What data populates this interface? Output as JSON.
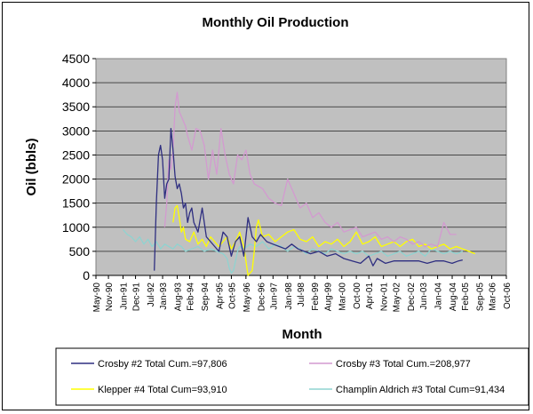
{
  "chart_data": {
    "type": "line",
    "title": "Monthly Oil Production",
    "xlabel": "Month",
    "ylabel": "Oil (bbls)",
    "ylim": [
      0,
      4500
    ],
    "yticks": [
      0,
      500,
      1000,
      1500,
      2000,
      2500,
      3000,
      3500,
      4000,
      4500
    ],
    "xlim": [
      "1990-05",
      "2006-10"
    ],
    "xticks": [
      "May-90",
      "Nov-90",
      "Jun-91",
      "Dec-91",
      "Jul-92",
      "Jan-93",
      "Aug-93",
      "Feb-94",
      "Sep-94",
      "Apr-95",
      "Oct-95",
      "May-96",
      "Dec-96",
      "Jun-97",
      "Jan-98",
      "Jul-98",
      "Feb-99",
      "Aug-99",
      "Mar-00",
      "Oct-00",
      "Apr-01",
      "Nov-01",
      "May-02",
      "Dec-02",
      "Jun-03",
      "Jan-04",
      "Aug-04",
      "Feb-05",
      "Sep-05",
      "Mar-06",
      "Oct-06"
    ],
    "grid": true,
    "legend_position": "bottom",
    "plot_background": "#c0c0c0",
    "series": [
      {
        "name": "Crosby #2 Total Cum.=97,806",
        "color": "#2e2e80",
        "x": [
          "1992-09",
          "1992-10",
          "1992-11",
          "1992-12",
          "1993-01",
          "1993-02",
          "1993-03",
          "1993-04",
          "1993-05",
          "1993-06",
          "1993-07",
          "1993-08",
          "1993-09",
          "1993-10",
          "1993-11",
          "1993-12",
          "1994-01",
          "1994-02",
          "1994-03",
          "1994-04",
          "1994-05",
          "1994-06",
          "1994-08",
          "1994-10",
          "1994-12",
          "1995-02",
          "1995-04",
          "1995-06",
          "1995-08",
          "1995-10",
          "1995-12",
          "1996-02",
          "1996-04",
          "1996-06",
          "1996-08",
          "1996-10",
          "1996-12",
          "1997-03",
          "1997-06",
          "1997-09",
          "1997-12",
          "1998-03",
          "1998-06",
          "1998-09",
          "1998-12",
          "1999-04",
          "1999-08",
          "1999-12",
          "2000-04",
          "2000-08",
          "2000-12",
          "2001-04",
          "2001-06",
          "2001-08",
          "2001-12",
          "2002-04",
          "2002-08",
          "2002-12",
          "2003-04",
          "2003-08",
          "2003-12",
          "2004-04",
          "2004-08",
          "2004-11",
          "2005-01"
        ],
        "y": [
          100,
          1500,
          2500,
          2700,
          2400,
          1600,
          1900,
          2000,
          3050,
          2600,
          2050,
          1800,
          1900,
          1700,
          1400,
          1500,
          1100,
          1300,
          1400,
          1100,
          1000,
          900,
          1400,
          800,
          700,
          600,
          500,
          900,
          800,
          400,
          700,
          800,
          400,
          1200,
          800,
          700,
          850,
          700,
          650,
          600,
          550,
          650,
          550,
          500,
          450,
          500,
          400,
          450,
          350,
          300,
          250,
          400,
          200,
          350,
          250,
          300,
          300,
          300,
          300,
          250,
          300,
          300,
          250,
          300,
          320
        ]
      },
      {
        "name": "Crosby #3 Total Cum.=208,977",
        "color": "#d39ad0",
        "x": [
          "1993-02",
          "1993-03",
          "1993-04",
          "1993-05",
          "1993-06",
          "1993-07",
          "1993-08",
          "1993-09",
          "1993-10",
          "1993-11",
          "1993-12",
          "1994-01",
          "1994-03",
          "1994-05",
          "1994-07",
          "1994-09",
          "1994-11",
          "1995-01",
          "1995-03",
          "1995-05",
          "1995-07",
          "1995-09",
          "1995-11",
          "1996-01",
          "1996-03",
          "1996-05",
          "1996-07",
          "1996-09",
          "1996-11",
          "1997-01",
          "1997-04",
          "1997-07",
          "1997-10",
          "1998-01",
          "1998-04",
          "1998-07",
          "1998-10",
          "1999-01",
          "1999-04",
          "1999-07",
          "1999-10",
          "2000-01",
          "2000-04",
          "2000-07",
          "2000-10",
          "2001-01",
          "2001-04",
          "2001-07",
          "2001-10",
          "2002-01",
          "2002-04",
          "2002-07",
          "2002-10",
          "2003-01",
          "2003-04",
          "2003-07",
          "2003-10",
          "2004-01",
          "2004-04",
          "2004-07",
          "2004-10"
        ],
        "y": [
          1000,
          1500,
          2400,
          2200,
          2600,
          3500,
          3800,
          3400,
          3300,
          3200,
          3100,
          2900,
          2600,
          3050,
          3000,
          2700,
          2000,
          2600,
          2100,
          3050,
          2500,
          2100,
          1900,
          2500,
          2400,
          2600,
          2100,
          1900,
          1850,
          1800,
          1600,
          1500,
          1450,
          2000,
          1700,
          1400,
          1500,
          1200,
          1300,
          1100,
          1000,
          1100,
          900,
          950,
          1000,
          800,
          850,
          900,
          750,
          800,
          700,
          800,
          750,
          650,
          700,
          600,
          650,
          600,
          1100,
          850,
          850
        ]
      },
      {
        "name": "Klepper #4 Total Cum=93,910",
        "color": "#ffff00",
        "x": [
          "1993-06",
          "1993-07",
          "1993-08",
          "1993-09",
          "1993-10",
          "1993-11",
          "1993-12",
          "1994-02",
          "1994-04",
          "1994-06",
          "1994-08",
          "1994-10",
          "1994-12",
          "1995-02",
          "1995-04",
          "1995-06",
          "1995-08",
          "1995-10",
          "1995-12",
          "1996-02",
          "1996-04",
          "1996-06",
          "1996-08",
          "1996-09",
          "1996-10",
          "1996-11",
          "1997-01",
          "1997-04",
          "1997-07",
          "1997-10",
          "1998-01",
          "1998-04",
          "1998-07",
          "1998-10",
          "1999-01",
          "1999-04",
          "1999-07",
          "1999-10",
          "2000-01",
          "2000-04",
          "2000-07",
          "2000-10",
          "2001-01",
          "2001-04",
          "2001-07",
          "2001-10",
          "2002-01",
          "2002-04",
          "2002-07",
          "2002-10",
          "2003-01",
          "2003-04",
          "2003-07",
          "2003-10",
          "2004-01",
          "2004-04",
          "2004-07",
          "2004-10",
          "2005-01",
          "2005-04",
          "2005-07"
        ],
        "y": [
          1100,
          1400,
          1450,
          1200,
          900,
          1000,
          750,
          700,
          900,
          650,
          750,
          600,
          800,
          700,
          600,
          700,
          800,
          550,
          700,
          900,
          600,
          0,
          100,
          500,
          1000,
          1150,
          800,
          850,
          700,
          800,
          900,
          950,
          750,
          700,
          800,
          600,
          700,
          650,
          750,
          600,
          700,
          900,
          650,
          700,
          800,
          600,
          650,
          700,
          600,
          700,
          750,
          600,
          650,
          550,
          600,
          650,
          550,
          600,
          550,
          500,
          450
        ]
      },
      {
        "name": "Champlin Aldrich #3 Total Cum=91,434",
        "color": "#8fd3d0",
        "x": [
          "1991-06",
          "1991-08",
          "1991-10",
          "1991-12",
          "1992-02",
          "1992-04",
          "1992-06",
          "1992-08",
          "1992-10",
          "1992-12",
          "1993-02",
          "1993-04",
          "1993-06",
          "1993-08",
          "1993-10",
          "1993-12",
          "1994-03",
          "1994-06",
          "1994-09",
          "1994-12",
          "1995-03",
          "1995-06",
          "1995-08",
          "1995-09",
          "1995-10",
          "1995-11",
          "1995-12",
          "1996-01",
          "1996-02",
          "1996-04",
          "1996-07",
          "1996-10",
          "1997-01",
          "1997-04",
          "1997-07",
          "1997-10",
          "1998-01",
          "1998-04",
          "1998-07",
          "1998-10",
          "1999-01",
          "1999-04",
          "1999-07",
          "1999-10",
          "2000-01",
          "2000-04",
          "2000-07",
          "2000-10",
          "2001-01",
          "2001-04",
          "2001-07",
          "2001-10",
          "2002-01",
          "2002-04",
          "2002-07",
          "2002-10",
          "2003-01",
          "2003-04",
          "2003-07",
          "2003-10",
          "2004-01",
          "2004-04",
          "2004-07",
          "2004-10",
          "2005-01"
        ],
        "y": [
          950,
          850,
          800,
          700,
          800,
          650,
          750,
          600,
          700,
          550,
          650,
          600,
          550,
          650,
          600,
          500,
          550,
          600,
          500,
          550,
          500,
          450,
          350,
          150,
          50,
          100,
          300,
          500,
          600,
          550,
          650,
          600,
          700,
          550,
          650,
          600,
          500,
          600,
          550,
          450,
          550,
          500,
          450,
          550,
          500,
          450,
          500,
          450,
          500,
          400,
          450,
          500,
          400,
          450,
          500,
          400,
          450,
          500,
          400,
          550,
          500,
          450,
          500,
          450,
          500
        ]
      }
    ]
  }
}
